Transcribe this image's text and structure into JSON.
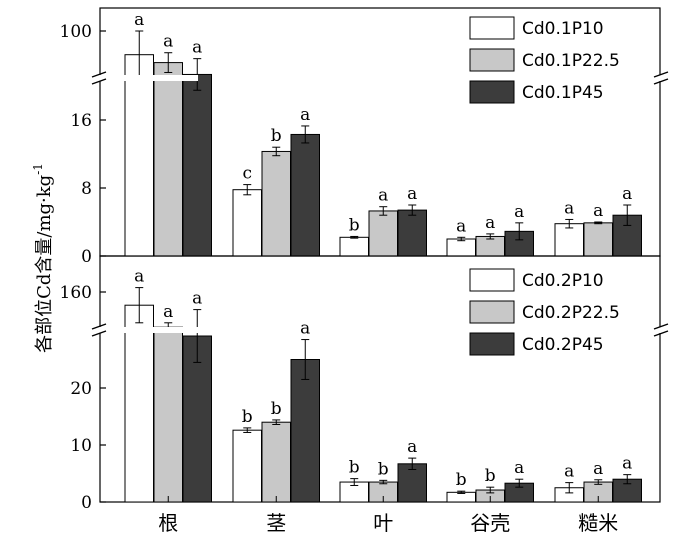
{
  "chart_data": [
    {
      "type": "bar",
      "panel": "top",
      "categories": [
        "根",
        "茎",
        "叶",
        "谷壳",
        "糙米"
      ],
      "ylabel": "各部位Cd含量/mg·kg",
      "ylabel_superscript": "-1",
      "axis_break": true,
      "y_ticks_lower": [
        0,
        8,
        16
      ],
      "y_ticks_upper": [
        100
      ],
      "series": [
        {
          "name": "Cd0.1P10",
          "color": "#ffffff",
          "values": [
            94,
            7.8,
            2.2,
            2.0,
            3.8
          ],
          "errors": [
            6,
            0.6,
            0.1,
            0.2,
            0.5
          ],
          "letters": [
            "a",
            "c",
            "b",
            "a",
            "a"
          ]
        },
        {
          "name": "Cd0.1P22.5",
          "color": "#c8c8c8",
          "values": [
            92,
            12.3,
            5.3,
            2.3,
            3.9
          ],
          "errors": [
            2.5,
            0.5,
            0.5,
            0.3,
            0.1
          ],
          "letters": [
            "a",
            "b",
            "a",
            "a",
            "a"
          ]
        },
        {
          "name": "Cd0.1P45",
          "color": "#3c3c3c",
          "values": [
            89,
            14.3,
            5.4,
            2.9,
            4.8
          ],
          "errors": [
            4,
            1.0,
            0.6,
            1.0,
            1.2
          ],
          "letters": [
            "a",
            "a",
            "a",
            "a",
            "a"
          ]
        }
      ]
    },
    {
      "type": "bar",
      "panel": "bottom",
      "categories": [
        "根",
        "茎",
        "叶",
        "谷壳",
        "糙米"
      ],
      "axis_break": true,
      "y_ticks_lower": [
        0,
        10,
        20
      ],
      "y_ticks_upper": [
        160
      ],
      "series": [
        {
          "name": "Cd0.2P10",
          "color": "#ffffff",
          "values": [
            157,
            12.6,
            3.5,
            1.7,
            2.5
          ],
          "errors": [
            4,
            0.4,
            0.6,
            0.2,
            0.9
          ],
          "letters": [
            "a",
            "b",
            "b",
            "b",
            "a"
          ]
        },
        {
          "name": "Cd0.2P22.5",
          "color": "#c8c8c8",
          "values": [
            152,
            14.0,
            3.5,
            2.1,
            3.5
          ],
          "errors": [
            1,
            0.4,
            0.3,
            0.5,
            0.4
          ],
          "letters": [
            "a",
            "b",
            "b",
            "b",
            "a"
          ]
        },
        {
          "name": "Cd0.2P45",
          "color": "#3c3c3c",
          "values": [
            150,
            25.0,
            6.7,
            3.3,
            4.0
          ],
          "errors": [
            6,
            3.5,
            1.0,
            0.7,
            0.8
          ],
          "letters": [
            "a",
            "a",
            "a",
            "a",
            "a"
          ]
        }
      ]
    }
  ]
}
